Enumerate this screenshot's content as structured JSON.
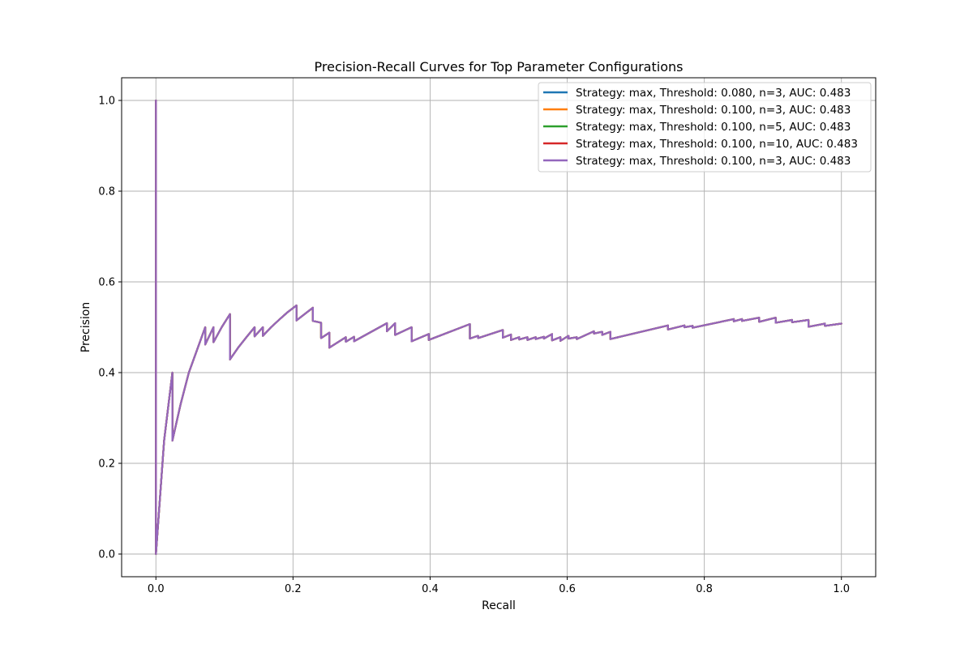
{
  "chart_data": {
    "type": "line",
    "title": "Precision-Recall Curves for Top Parameter Configurations",
    "xlabel": "Recall",
    "ylabel": "Precision",
    "xlim": [
      -0.05,
      1.05
    ],
    "ylim": [
      -0.05,
      1.05
    ],
    "xticks": [
      0.0,
      0.2,
      0.4,
      0.6,
      0.8,
      1.0
    ],
    "yticks": [
      0.0,
      0.2,
      0.4,
      0.6,
      0.8,
      1.0
    ],
    "xtick_labels": [
      "0.0",
      "0.2",
      "0.4",
      "0.6",
      "0.8",
      "1.0"
    ],
    "ytick_labels": [
      "0.0",
      "0.2",
      "0.4",
      "0.6",
      "0.8",
      "1.0"
    ],
    "grid": true,
    "legend_position": "top-right",
    "x": [
      0.0,
      0.0,
      0.0,
      0.012,
      0.024,
      0.024,
      0.036,
      0.048,
      0.06,
      0.072,
      0.072,
      0.084,
      0.084,
      0.096,
      0.108,
      0.108,
      0.12,
      0.132,
      0.144,
      0.144,
      0.156,
      0.156,
      0.168,
      0.18,
      0.192,
      0.205,
      0.205,
      0.229,
      0.229,
      0.241,
      0.241,
      0.253,
      0.253,
      0.277,
      0.277,
      0.289,
      0.289,
      0.337,
      0.337,
      0.349,
      0.349,
      0.373,
      0.373,
      0.398,
      0.398,
      0.458,
      0.458,
      0.47,
      0.47,
      0.506,
      0.506,
      0.518,
      0.518,
      0.53,
      0.53,
      0.542,
      0.542,
      0.554,
      0.554,
      0.566,
      0.566,
      0.578,
      0.578,
      0.59,
      0.59,
      0.602,
      0.602,
      0.614,
      0.614,
      0.639,
      0.639,
      0.651,
      0.651,
      0.663,
      0.663,
      0.747,
      0.747,
      0.771,
      0.771,
      0.783,
      0.783,
      0.843,
      0.843,
      0.855,
      0.855,
      0.88,
      0.88,
      0.904,
      0.904,
      0.928,
      0.928,
      0.952,
      0.952,
      0.976,
      0.976,
      1.0
    ],
    "series": [
      {
        "name": "Strategy: max, Threshold: 0.080, n=3, AUC: 0.483",
        "color": "#1f77b4"
      },
      {
        "name": "Strategy: max, Threshold: 0.100, n=3, AUC: 0.483",
        "color": "#ff7f0e"
      },
      {
        "name": "Strategy: max, Threshold: 0.100, n=5, AUC: 0.483",
        "color": "#2ca02c"
      },
      {
        "name": "Strategy: max, Threshold: 0.100, n=10, AUC: 0.483",
        "color": "#d62728"
      },
      {
        "name": "Strategy: max, Threshold: 0.100, n=3, AUC: 0.483",
        "color": "#9467bd"
      }
    ],
    "y": [
      1.0,
      0.0,
      0.0,
      0.25,
      0.4,
      0.25,
      0.33,
      0.4,
      0.45,
      0.5,
      0.462,
      0.5,
      0.467,
      0.5,
      0.529,
      0.429,
      0.455,
      0.478,
      0.5,
      0.48,
      0.5,
      0.481,
      0.5,
      0.517,
      0.533,
      0.548,
      0.515,
      0.543,
      0.514,
      0.51,
      0.476,
      0.488,
      0.455,
      0.478,
      0.468,
      0.479,
      0.469,
      0.509,
      0.491,
      0.509,
      0.483,
      0.5,
      0.469,
      0.485,
      0.472,
      0.507,
      0.475,
      0.481,
      0.476,
      0.494,
      0.477,
      0.484,
      0.472,
      0.478,
      0.473,
      0.478,
      0.472,
      0.478,
      0.474,
      0.479,
      0.475,
      0.485,
      0.471,
      0.478,
      0.47,
      0.481,
      0.475,
      0.478,
      0.474,
      0.491,
      0.486,
      0.49,
      0.483,
      0.49,
      0.474,
      0.504,
      0.495,
      0.504,
      0.5,
      0.503,
      0.499,
      0.518,
      0.513,
      0.518,
      0.514,
      0.521,
      0.512,
      0.521,
      0.51,
      0.516,
      0.511,
      0.516,
      0.501,
      0.508,
      0.503,
      0.508
    ]
  }
}
